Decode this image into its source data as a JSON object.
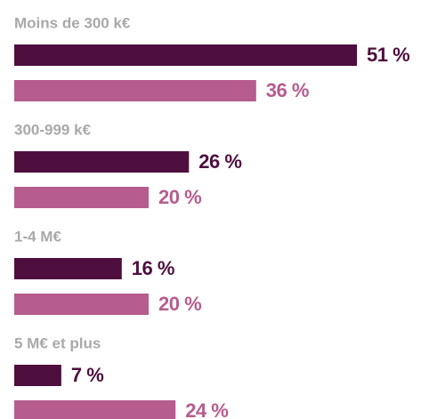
{
  "chart_data": {
    "type": "bar",
    "orientation": "horizontal",
    "categories": [
      "Moins de 300 k€",
      "300-999 k€",
      "1-4 M€",
      "5 M€ et plus"
    ],
    "series": [
      {
        "color": "#4e0f3e",
        "values": [
          51,
          26,
          16,
          7
        ],
        "value_labels": [
          "51 %",
          "26 %",
          "16 %",
          "7 %"
        ]
      },
      {
        "color": "#b65c8e",
        "values": [
          36,
          20,
          20,
          24
        ],
        "value_labels": [
          "36 %",
          "20 %",
          "20 %",
          "24 %"
        ]
      }
    ]
  }
}
